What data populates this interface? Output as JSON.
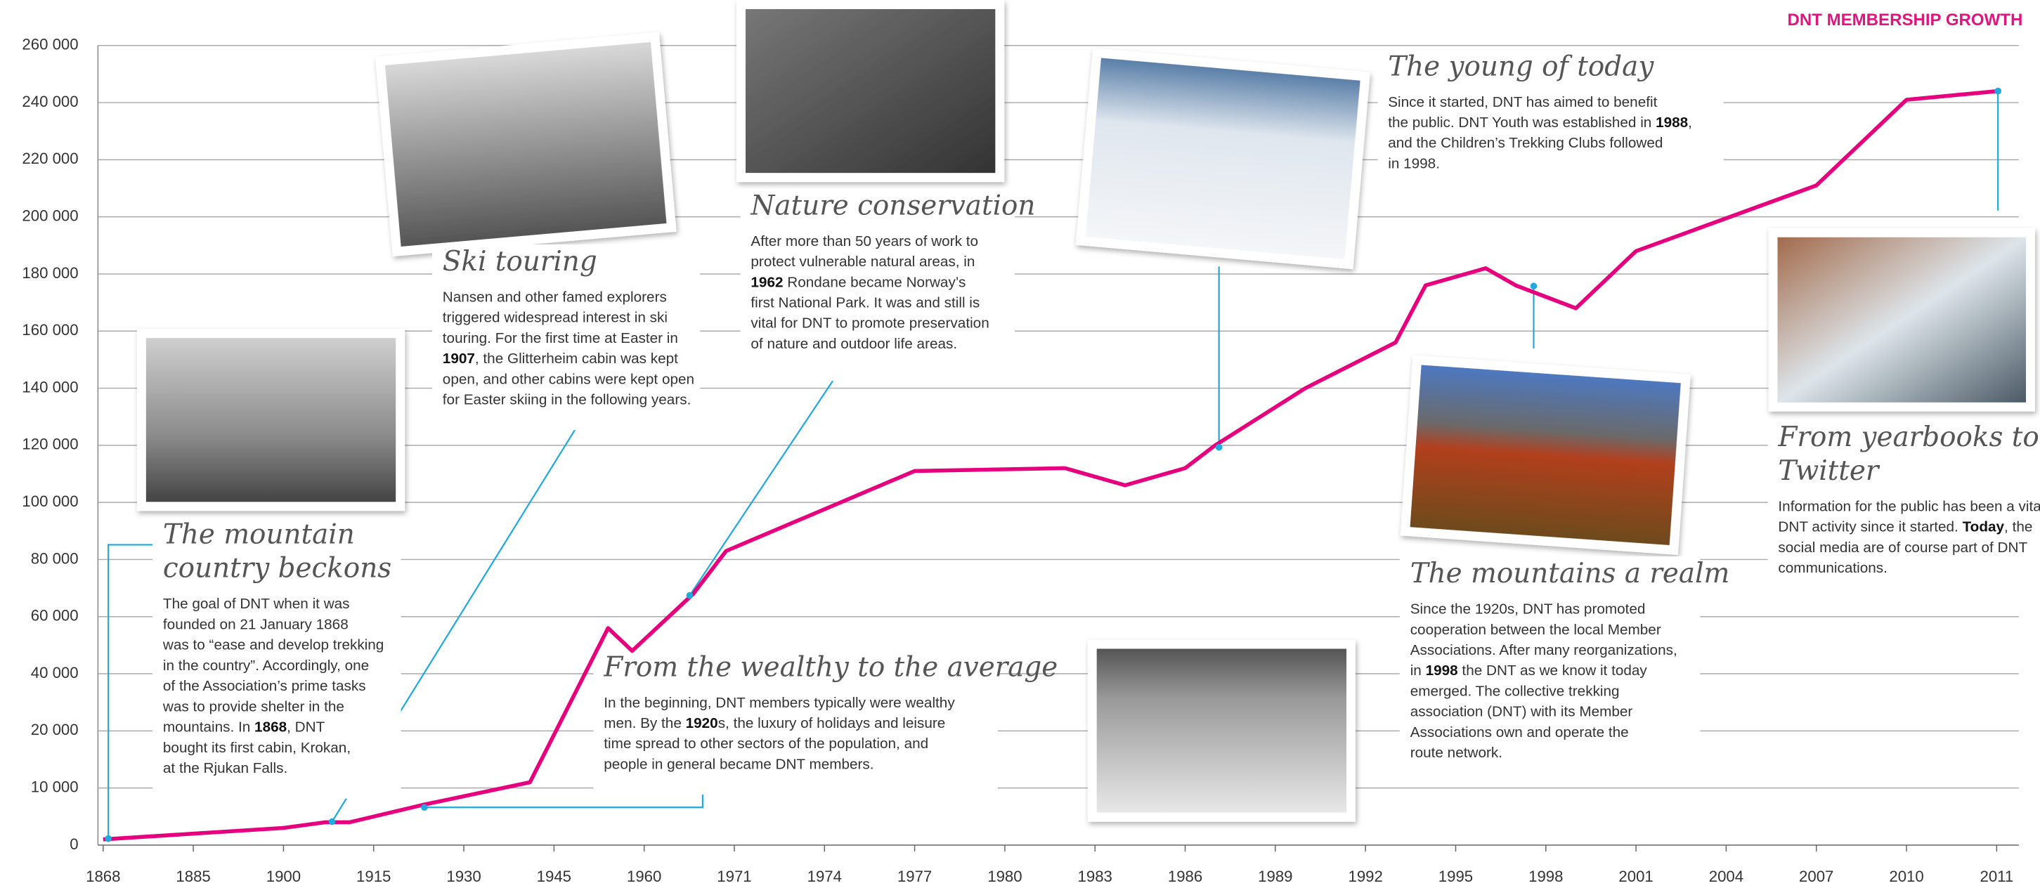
{
  "chart_data": {
    "type": "line",
    "title": "DNT MEMBERSHIP GROWTH",
    "color": "#e6007e",
    "grid": true,
    "x": [
      1868,
      1885,
      1900,
      1907,
      1911,
      1923,
      1941,
      1954,
      1958,
      1966,
      1970,
      1977,
      1982,
      1984,
      1986,
      1987,
      1990,
      1993,
      1994,
      1996,
      1997,
      1999,
      2001,
      2007,
      2010,
      2011
    ],
    "values": [
      1000,
      2000,
      3000,
      4000,
      4000,
      7000,
      11000,
      56000,
      48000,
      68000,
      83000,
      111000,
      112000,
      106000,
      112000,
      120000,
      140000,
      156000,
      176000,
      182000,
      176000,
      168000,
      188000,
      211000,
      241000,
      244000
    ],
    "xlim": [
      1868,
      2011
    ],
    "xticks": [
      1868,
      1885,
      1900,
      1915,
      1930,
      1945,
      1960,
      1971,
      1974,
      1977,
      1980,
      1983,
      1986,
      1989,
      1992,
      1995,
      1998,
      2001,
      2004,
      2007,
      2010,
      2011
    ],
    "ylim": [
      0,
      260000
    ],
    "yticks": [
      0,
      {
        "value": 10000,
        "label": "10 000"
      },
      {
        "value": 20000,
        "label": "20 000"
      },
      {
        "value": 40000,
        "label": "40 000"
      },
      {
        "value": 60000,
        "label": "60 000"
      },
      {
        "value": 80000,
        "label": "80 000"
      },
      {
        "value": 100000,
        "label": "100 000"
      },
      {
        "value": 120000,
        "label": "120 000"
      },
      {
        "value": 140000,
        "label": "140 000"
      },
      {
        "value": 160000,
        "label": "160 000"
      },
      {
        "value": 180000,
        "label": "180 000"
      },
      {
        "value": 200000,
        "label": "200 000"
      },
      {
        "value": 220000,
        "label": "220 000"
      },
      {
        "value": 240000,
        "label": "240 000"
      },
      {
        "value": 260000,
        "label": "260 000"
      }
    ],
    "annotations": [
      {
        "title": [
          "The mountain",
          "country beckons"
        ],
        "lines": [
          [
            "The goal of DNT when it was"
          ],
          [
            "founded on 21 January 1868"
          ],
          [
            "was to “ease and develop trekking"
          ],
          [
            "in the country”. Accordingly, one"
          ],
          [
            "of the Association’s prime tasks"
          ],
          [
            "was to provide shelter in the"
          ],
          [
            "mountains. In ",
            "1868",
            ", DNT"
          ],
          [
            "bought its first cabin, Krokan,"
          ],
          [
            "at the Rjukan Falls."
          ]
        ]
      },
      {
        "title": [
          "Ski touring"
        ],
        "lines": [
          [
            "Nansen and other famed explorers"
          ],
          [
            "triggered widespread interest in ski"
          ],
          [
            "touring. For the first time at Easter in"
          ],
          [
            "",
            "1907",
            ", the Glitterheim cabin was kept"
          ],
          [
            "open, and other cabins were kept open"
          ],
          [
            "for Easter skiing in the following years."
          ]
        ]
      },
      {
        "title": [
          "Nature conservation"
        ],
        "lines": [
          [
            "After more than 50 years of work to"
          ],
          [
            "protect vulnerable natural areas, in"
          ],
          [
            "",
            "1962",
            " Rondane became Norway’s"
          ],
          [
            "first National Park. It was and still is"
          ],
          [
            "vital for DNT to promote preservation"
          ],
          [
            "of nature and outdoor life areas."
          ]
        ]
      },
      {
        "title": [
          "From the wealthy to the average"
        ],
        "lines": [
          [
            "In the beginning, DNT members typically were wealthy"
          ],
          [
            "men. By the ",
            "1920",
            "s, the luxury of holidays and leisure"
          ],
          [
            "time spread to other sectors of the population, and"
          ],
          [
            "people in general became DNT members."
          ]
        ]
      },
      {
        "title": [
          "The young of today"
        ],
        "lines": [
          [
            "Since it started, DNT has aimed to benefit"
          ],
          [
            "the public. DNT Youth was established in ",
            "1988",
            ","
          ],
          [
            "and the Children’s Trekking Clubs followed"
          ],
          [
            "in 1998."
          ]
        ]
      },
      {
        "title": [
          "The mountains a realm"
        ],
        "lines": [
          [
            "Since the 1920s, DNT has promoted"
          ],
          [
            "cooperation between the local Member"
          ],
          [
            "Associations. After many reorganizations,"
          ],
          [
            "in ",
            "1998",
            " the DNT as we know it today"
          ],
          [
            "emerged. The collective trekking"
          ],
          [
            "association (DNT) with its Member"
          ],
          [
            "Associations own and operate the"
          ],
          [
            "route network."
          ]
        ]
      },
      {
        "title": [
          "From yearbooks to",
          "Twitter"
        ],
        "lines": [
          [
            "Information for the public has been a vital"
          ],
          [
            "DNT activity since it started. ",
            "Today",
            ", the"
          ],
          [
            "social media are of course part of DNT"
          ],
          [
            "communications."
          ]
        ]
      }
    ]
  }
}
